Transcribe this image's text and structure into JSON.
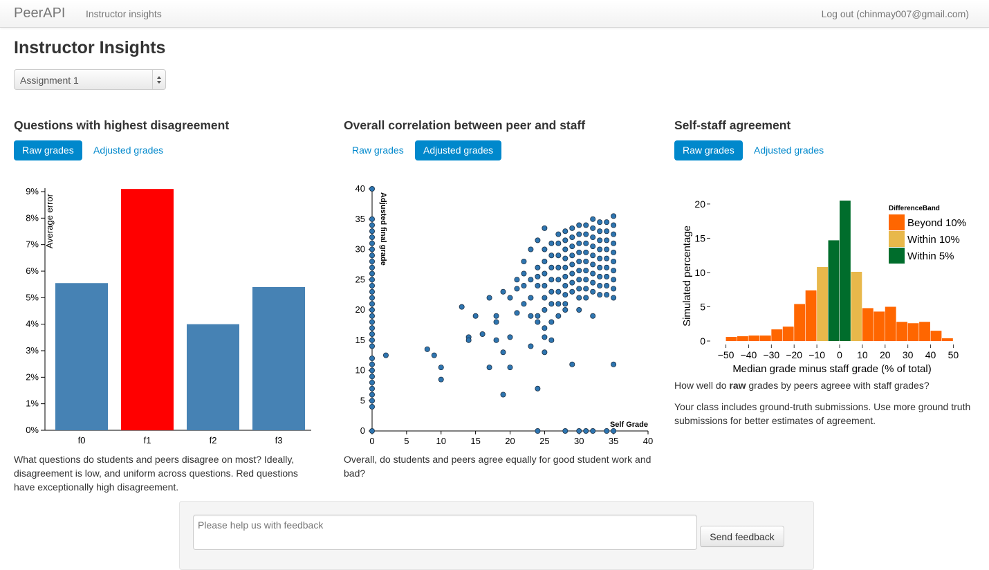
{
  "navbar": {
    "brand": "PeerAPI",
    "link": "Instructor insights",
    "logout": "Log out (chinmay007@gmail.com)"
  },
  "page": {
    "title": "Instructor Insights",
    "assignment_select": "Assignment 1"
  },
  "panels": [
    {
      "title": "Questions with highest disagreement",
      "tabs": [
        {
          "label": "Raw grades",
          "active": true
        },
        {
          "label": "Adjusted grades",
          "active": false
        }
      ],
      "description": "What questions do students and peers disagree on most? Ideally, disagreement is low, and uniform across questions. Red questions have exceptionally high disagreement."
    },
    {
      "title": "Overall correlation between peer and staff",
      "tabs": [
        {
          "label": "Raw grades",
          "active": false
        },
        {
          "label": "Adjusted grades",
          "active": true
        }
      ],
      "description": "Overall, do students and peers agree equally for good student work and bad?"
    },
    {
      "title": "Self-staff agreement",
      "tabs": [
        {
          "label": "Raw grades",
          "active": true
        },
        {
          "label": "Adjusted grades",
          "active": false
        }
      ],
      "description_prefix": "How well do ",
      "description_bold": "raw",
      "description_suffix": " grades by peers agreee with staff grades?",
      "description2": "Your class includes ground-truth submissions. Use more ground truth submissions for better estimates of agreement."
    }
  ],
  "feedback": {
    "placeholder": "Please help us with feedback",
    "button": "Send feedback"
  },
  "colors": {
    "bar_normal": "#4682b4",
    "bar_high": "#ff0000",
    "point": "#2e75b0",
    "beyond10": "#ff6600",
    "within10": "#e8b84b",
    "within5": "#006d2c",
    "accent": "#0088cc"
  },
  "chart_data": [
    {
      "type": "bar",
      "categories": [
        "f0",
        "f1",
        "f2",
        "f3"
      ],
      "values": [
        5.55,
        9.1,
        4.0,
        5.4
      ],
      "highlight": [
        false,
        true,
        false,
        false
      ],
      "ylabel": "Average error",
      "ylim": [
        0,
        9
      ],
      "yticks": [
        "0%",
        "1%",
        "2%",
        "3%",
        "4%",
        "5%",
        "6%",
        "7%",
        "8%",
        "9%"
      ]
    },
    {
      "type": "scatter",
      "xlabel": "Self Grade",
      "ylabel": "Adjusted final grade",
      "xlim": [
        0,
        40
      ],
      "ylim": [
        0,
        40
      ],
      "xticks": [
        0,
        5,
        10,
        15,
        20,
        25,
        30,
        35,
        40
      ],
      "yticks": [
        0,
        5,
        10,
        15,
        20,
        25,
        30,
        35,
        40
      ],
      "points": [
        [
          0,
          40
        ],
        [
          0,
          35
        ],
        [
          0,
          34
        ],
        [
          0,
          33
        ],
        [
          0,
          32
        ],
        [
          0,
          31
        ],
        [
          0,
          30
        ],
        [
          0,
          29
        ],
        [
          0,
          28
        ],
        [
          0,
          27
        ],
        [
          0,
          26
        ],
        [
          0,
          25
        ],
        [
          0,
          24
        ],
        [
          0,
          23
        ],
        [
          0,
          22
        ],
        [
          0,
          21
        ],
        [
          0,
          20
        ],
        [
          0,
          19
        ],
        [
          0,
          18
        ],
        [
          0,
          17
        ],
        [
          0,
          16
        ],
        [
          0,
          15
        ],
        [
          0,
          14
        ],
        [
          0,
          12
        ],
        [
          0,
          11
        ],
        [
          0,
          10
        ],
        [
          0,
          9
        ],
        [
          0,
          8
        ],
        [
          0,
          7
        ],
        [
          0,
          6
        ],
        [
          0,
          5
        ],
        [
          0,
          4
        ],
        [
          0,
          0
        ],
        [
          2,
          12.5
        ],
        [
          8,
          13.5
        ],
        [
          9,
          12.5
        ],
        [
          10,
          10.5
        ],
        [
          10,
          8.5
        ],
        [
          13,
          20.5
        ],
        [
          14,
          15.5
        ],
        [
          14,
          15
        ],
        [
          15,
          19
        ],
        [
          16,
          16
        ],
        [
          17,
          22
        ],
        [
          17,
          10.5
        ],
        [
          18,
          19
        ],
        [
          18,
          18
        ],
        [
          18,
          15
        ],
        [
          19,
          23
        ],
        [
          19,
          13
        ],
        [
          19,
          6
        ],
        [
          20,
          22
        ],
        [
          20,
          15.5
        ],
        [
          20,
          10.5
        ],
        [
          21,
          19.5
        ],
        [
          21,
          23.5
        ],
        [
          21,
          25
        ],
        [
          22,
          24
        ],
        [
          22,
          21
        ],
        [
          22,
          26
        ],
        [
          22,
          28
        ],
        [
          23,
          25
        ],
        [
          23,
          30
        ],
        [
          23,
          22
        ],
        [
          23,
          19
        ],
        [
          23,
          14
        ],
        [
          24,
          31.5
        ],
        [
          24,
          27
        ],
        [
          24,
          25.5
        ],
        [
          24,
          24
        ],
        [
          24,
          19
        ],
        [
          24,
          18
        ],
        [
          24,
          7
        ],
        [
          24,
          0
        ],
        [
          25,
          30
        ],
        [
          25,
          28
        ],
        [
          25,
          26
        ],
        [
          25,
          24
        ],
        [
          25,
          22
        ],
        [
          25,
          20
        ],
        [
          25,
          17
        ],
        [
          25,
          15.5
        ],
        [
          25,
          13
        ],
        [
          25,
          33.5
        ],
        [
          26,
          31
        ],
        [
          26,
          29
        ],
        [
          26,
          27
        ],
        [
          26,
          25
        ],
        [
          26,
          23
        ],
        [
          26,
          21
        ],
        [
          26,
          18
        ],
        [
          26,
          15
        ],
        [
          27,
          32.5
        ],
        [
          27,
          31
        ],
        [
          27,
          29
        ],
        [
          27,
          27
        ],
        [
          27,
          25
        ],
        [
          27,
          23
        ],
        [
          27,
          21
        ],
        [
          27,
          19
        ],
        [
          28,
          33
        ],
        [
          28,
          31.5
        ],
        [
          28,
          30
        ],
        [
          28,
          28.5
        ],
        [
          28,
          27
        ],
        [
          28,
          25.5
        ],
        [
          28,
          24
        ],
        [
          28,
          22.5
        ],
        [
          28,
          21
        ],
        [
          28,
          20
        ],
        [
          28,
          0
        ],
        [
          29,
          33.5
        ],
        [
          29,
          32
        ],
        [
          29,
          30.5
        ],
        [
          29,
          29
        ],
        [
          29,
          27.5
        ],
        [
          29,
          26
        ],
        [
          29,
          24.5
        ],
        [
          29,
          23
        ],
        [
          29,
          11
        ],
        [
          30,
          34
        ],
        [
          30,
          32.5
        ],
        [
          30,
          31
        ],
        [
          30,
          29.5
        ],
        [
          30,
          28
        ],
        [
          30,
          26.5
        ],
        [
          30,
          25
        ],
        [
          30,
          23.5
        ],
        [
          30,
          22
        ],
        [
          30,
          20
        ],
        [
          30,
          0
        ],
        [
          31,
          34
        ],
        [
          31,
          32.5
        ],
        [
          31,
          31
        ],
        [
          31,
          29.5
        ],
        [
          31,
          28
        ],
        [
          31,
          26.5
        ],
        [
          31,
          25
        ],
        [
          31,
          23.5
        ],
        [
          31,
          22
        ],
        [
          31,
          0
        ],
        [
          32,
          35
        ],
        [
          32,
          33.5
        ],
        [
          32,
          32
        ],
        [
          32,
          30.5
        ],
        [
          32,
          29
        ],
        [
          32,
          27.5
        ],
        [
          32,
          26
        ],
        [
          32,
          24.5
        ],
        [
          32,
          23
        ],
        [
          32,
          19
        ],
        [
          32,
          0
        ],
        [
          33,
          34.5
        ],
        [
          33,
          33
        ],
        [
          33,
          31.5
        ],
        [
          33,
          30
        ],
        [
          33,
          28.5
        ],
        [
          33,
          27
        ],
        [
          33,
          25.5
        ],
        [
          33,
          24
        ],
        [
          33,
          22.5
        ],
        [
          34,
          34.5
        ],
        [
          34,
          33
        ],
        [
          34,
          31.5
        ],
        [
          34,
          30
        ],
        [
          34,
          28.5
        ],
        [
          34,
          27
        ],
        [
          34,
          25.5
        ],
        [
          34,
          24
        ],
        [
          34,
          22.5
        ],
        [
          34,
          0
        ],
        [
          35,
          35.5
        ],
        [
          35,
          34
        ],
        [
          35,
          32.5
        ],
        [
          35,
          31
        ],
        [
          35,
          29.5
        ],
        [
          35,
          28
        ],
        [
          35,
          26.5
        ],
        [
          35,
          25
        ],
        [
          35,
          23.5
        ],
        [
          35,
          22
        ],
        [
          35,
          11
        ],
        [
          35,
          0
        ]
      ]
    },
    {
      "type": "bar",
      "subtype": "histogram",
      "xlabel": "Median grade minus staff grade (% of total)",
      "ylabel": "Simulated percentage",
      "xlim": [
        -52,
        52
      ],
      "ylim": [
        0,
        21
      ],
      "xticks": [
        -50,
        -40,
        -30,
        -20,
        -10,
        0,
        10,
        20,
        30,
        40,
        50
      ],
      "yticks": [
        0,
        5,
        10,
        15,
        20
      ],
      "legend": {
        "title": "DifferenceBand",
        "entries": [
          {
            "label": "Beyond 10%",
            "color": "#ff6600"
          },
          {
            "label": "Within 10%",
            "color": "#e8b84b"
          },
          {
            "label": "Within 5%",
            "color": "#006d2c"
          }
        ]
      },
      "bins": [
        {
          "x0": -50,
          "x1": -45,
          "value": 0.6,
          "band": "beyond10"
        },
        {
          "x0": -45,
          "x1": -40,
          "value": 0.7,
          "band": "beyond10"
        },
        {
          "x0": -40,
          "x1": -35,
          "value": 0.8,
          "band": "beyond10"
        },
        {
          "x0": -35,
          "x1": -30,
          "value": 0.8,
          "band": "beyond10"
        },
        {
          "x0": -30,
          "x1": -25,
          "value": 1.7,
          "band": "beyond10"
        },
        {
          "x0": -25,
          "x1": -20,
          "value": 2.1,
          "band": "beyond10"
        },
        {
          "x0": -20,
          "x1": -15,
          "value": 5.4,
          "band": "beyond10"
        },
        {
          "x0": -15,
          "x1": -10,
          "value": 7.4,
          "band": "beyond10"
        },
        {
          "x0": -10,
          "x1": -5,
          "value": 10.8,
          "band": "within10"
        },
        {
          "x0": -5,
          "x1": 0,
          "value": 14.7,
          "band": "within5"
        },
        {
          "x0": 0,
          "x1": 5,
          "value": 20.5,
          "band": "within5"
        },
        {
          "x0": 5,
          "x1": 10,
          "value": 10.1,
          "band": "within10"
        },
        {
          "x0": 10,
          "x1": 15,
          "value": 4.8,
          "band": "beyond10"
        },
        {
          "x0": 15,
          "x1": 20,
          "value": 4.3,
          "band": "beyond10"
        },
        {
          "x0": 20,
          "x1": 25,
          "value": 5.0,
          "band": "beyond10"
        },
        {
          "x0": 25,
          "x1": 30,
          "value": 2.8,
          "band": "beyond10"
        },
        {
          "x0": 30,
          "x1": 35,
          "value": 2.6,
          "band": "beyond10"
        },
        {
          "x0": 35,
          "x1": 40,
          "value": 2.8,
          "band": "beyond10"
        },
        {
          "x0": 40,
          "x1": 45,
          "value": 1.5,
          "band": "beyond10"
        },
        {
          "x0": 45,
          "x1": 50,
          "value": 0.4,
          "band": "beyond10"
        }
      ]
    }
  ]
}
